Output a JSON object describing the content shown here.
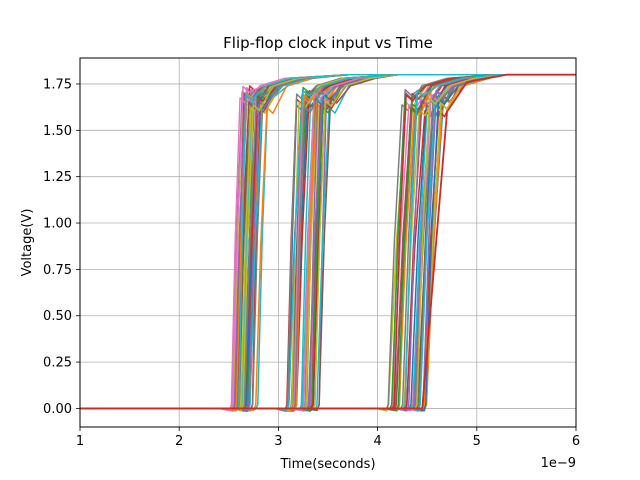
{
  "chart_data": {
    "type": "line",
    "title": "Flip-flop clock input vs Time",
    "xlabel": "Time(seconds)",
    "ylabel": "Voltage(V)",
    "x_exponent_label": "1e−9",
    "xlim": [
      1,
      6
    ],
    "ylim": [
      -0.1,
      1.89
    ],
    "xticks": [
      1,
      2,
      3,
      4,
      5,
      6
    ],
    "xtick_labels": [
      "1",
      "2",
      "3",
      "4",
      "5",
      "6"
    ],
    "yticks": [
      0.0,
      0.25,
      0.5,
      0.75,
      1.0,
      1.25,
      1.5,
      1.75
    ],
    "ytick_labels": [
      "0.00",
      "0.25",
      "0.50",
      "0.75",
      "1.00",
      "1.25",
      "1.50",
      "1.75"
    ],
    "grid": true,
    "legend": "none",
    "palette": [
      "#1f77b4",
      "#ff7f0e",
      "#2ca02c",
      "#d62728",
      "#9467bd",
      "#8c564b",
      "#e377c2",
      "#7f7f7f",
      "#bcbd22",
      "#17becf"
    ],
    "waveform_groups": [
      {
        "rise_start_range": [
          2.5,
          2.8
        ],
        "high_start_range": [
          2.58,
          2.9
        ],
        "peak_v_range": [
          1.62,
          1.74
        ],
        "settle_time": 3.7,
        "high_v": 1.8,
        "traces": 40
      },
      {
        "rise_start_range": [
          3.07,
          3.42
        ],
        "high_start_range": [
          3.18,
          3.52
        ],
        "peak_v_range": [
          1.62,
          1.74
        ],
        "settle_time": 4.2,
        "high_v": 1.8,
        "traces": 40
      },
      {
        "rise_start_range": [
          4.1,
          4.5
        ],
        "high_start_range": [
          4.3,
          4.75
        ],
        "peak_v_range": [
          1.6,
          1.72
        ],
        "settle_time": 5.2,
        "high_v": 1.8,
        "traces": 40
      }
    ],
    "low_v": 0.0
  }
}
